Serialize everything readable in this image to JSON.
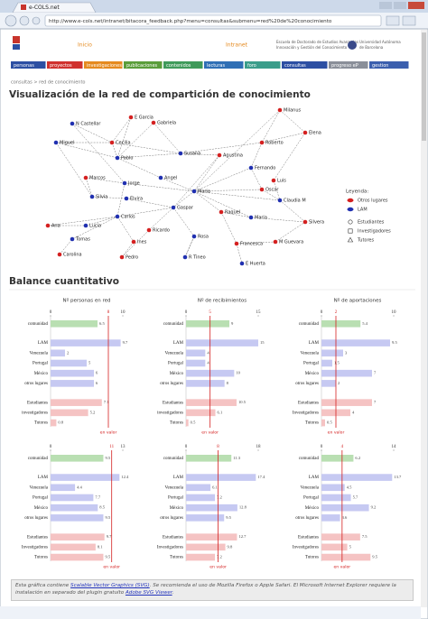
{
  "browser": {
    "tab_title": "e-COLS.net",
    "url": "http://www.e-cols.net/intranet/bitacora_feedback.php?menu=consultas&submenu=red%20de%20conocimiento"
  },
  "header": {
    "left_link": "Inicio",
    "right_link": "Intranet",
    "org_lines": [
      "Escuela de Doctorado de Estudios Avanzados",
      "Innovación y Gestión del Conocimiento"
    ],
    "uni_lines": [
      "Universidad Autónoma",
      "de Barcelona"
    ]
  },
  "nav": [
    {
      "label": "personas",
      "color": "#2c4fa3"
    },
    {
      "label": "proyectos",
      "color": "#d0312d"
    },
    {
      "label": "investigaciones",
      "color": "#e58a1f"
    },
    {
      "label": "publicaciones",
      "color": "#5a9d3a"
    },
    {
      "label": "contenidos",
      "color": "#3f9a5a"
    },
    {
      "label": "lecturas",
      "color": "#2f6fb5"
    },
    {
      "label": "foro",
      "color": "#3a9d8a"
    },
    {
      "label": "consultas",
      "color": "#2c4fa3"
    },
    {
      "label": "progreso eP",
      "color": "#8a8f99"
    },
    {
      "label": "gestion",
      "color": "#3b5fae"
    }
  ],
  "breadcrumb": "consultas > red de conocimiento",
  "title": "Visualización de la red de compartición de conocimiento",
  "network": {
    "nodes": [
      {
        "label": "Milanus",
        "color": "#d42020"
      },
      {
        "label": "Elena",
        "color": "#d42020"
      },
      {
        "label": "E Garcia",
        "color": "#d42020"
      },
      {
        "label": "Gabriela",
        "color": "#d42020"
      },
      {
        "label": "N Castellar",
        "color": "#2030b0"
      },
      {
        "label": "Miguel",
        "color": "#2030b0"
      },
      {
        "label": "Cecilia",
        "color": "#d42020"
      },
      {
        "label": "Pablo",
        "color": "#2030b0"
      },
      {
        "label": "Susana",
        "color": "#2030b0"
      },
      {
        "label": "Roberto",
        "color": "#d42020"
      },
      {
        "label": "Agustina",
        "color": "#d42020"
      },
      {
        "label": "Fernando",
        "color": "#2030b0"
      },
      {
        "label": "Marcos",
        "color": "#d42020"
      },
      {
        "label": "Jorge",
        "color": "#2030b0"
      },
      {
        "label": "Angel",
        "color": "#2030b0"
      },
      {
        "label": "Luis",
        "color": "#d42020"
      },
      {
        "label": "Silvia",
        "color": "#2030b0"
      },
      {
        "label": "Elvira",
        "color": "#2030b0"
      },
      {
        "label": "Mario",
        "color": "#2030b0"
      },
      {
        "label": "Oscar",
        "color": "#d42020"
      },
      {
        "label": "Claudia M",
        "color": "#2030b0"
      },
      {
        "label": "Gaspar",
        "color": "#2030b0"
      },
      {
        "label": "Raquel",
        "color": "#d42020"
      },
      {
        "label": "Maria",
        "color": "#2030b0"
      },
      {
        "label": "Ana",
        "color": "#d42020"
      },
      {
        "label": "Lucia",
        "color": "#2030b0"
      },
      {
        "label": "Carlos",
        "color": "#2030b0"
      },
      {
        "label": "Ricardo",
        "color": "#d42020"
      },
      {
        "label": "Rosa",
        "color": "#2030b0"
      },
      {
        "label": "Silvera",
        "color": "#d42020"
      },
      {
        "label": "Tomas",
        "color": "#2030b0"
      },
      {
        "label": "Ines",
        "color": "#d42020"
      },
      {
        "label": "Francesca",
        "color": "#d42020"
      },
      {
        "label": "M Guevara",
        "color": "#d42020"
      },
      {
        "label": "Carolina",
        "color": "#d42020"
      },
      {
        "label": "Pedro",
        "color": "#d42020"
      },
      {
        "label": "R Tineo",
        "color": "#2030b0"
      },
      {
        "label": "E Huerta",
        "color": "#2030b0"
      }
    ],
    "legend": {
      "title": "Leyenda:",
      "items": [
        {
          "label": "Otros lugares",
          "color": "#d42020"
        },
        {
          "label": "LAM",
          "color": "#2030b0"
        },
        {
          "label": "Estudiantes"
        },
        {
          "label": "Investigadores"
        },
        {
          "label": "Tutores"
        }
      ]
    }
  },
  "balance_title": "Balance cuantitativo",
  "chart_data": [
    {
      "type": "bar",
      "orientation": "horizontal",
      "title": "Nº personas en red",
      "categories": [
        "comunidad",
        "LAM",
        "Venezuela",
        "Portugal",
        "México",
        "otros lugares",
        "Estudiantes",
        "investigadores",
        "Tutores"
      ],
      "values": [
        6.5,
        9.7,
        2,
        5,
        6,
        6,
        7.1,
        5.2,
        0.8
      ],
      "colors": [
        "#b9dfb2",
        "#c6c9f2",
        "#c6c9f2",
        "#c6c9f2",
        "#c6c9f2",
        "#c6c9f2",
        "#f5c3c3",
        "#f5c3c3",
        "#f5c3c3"
      ],
      "xlim": [
        0,
        10
      ],
      "xticks": [
        0,
        10
      ],
      "reference_value": 8,
      "reference_label": "en valor"
    },
    {
      "type": "bar",
      "orientation": "horizontal",
      "title": "Nº de recibimientos",
      "categories": [
        "comunidad",
        "LAM",
        "Venezuela",
        "Portugal",
        "México",
        "otros lugares",
        "Estudiantes",
        "investigadores",
        "Tutores"
      ],
      "values": [
        9,
        15,
        4,
        4,
        10,
        8,
        10.5,
        6.1,
        0.5
      ],
      "colors": [
        "#b9dfb2",
        "#c6c9f2",
        "#c6c9f2",
        "#c6c9f2",
        "#c6c9f2",
        "#c6c9f2",
        "#f5c3c3",
        "#f5c3c3",
        "#f5c3c3"
      ],
      "xlim": [
        0,
        15
      ],
      "xticks": [
        0,
        15
      ],
      "reference_value": 5,
      "reference_label": "en valor"
    },
    {
      "type": "bar",
      "orientation": "horizontal",
      "title": "Nº de aportaciones",
      "categories": [
        "comunidad",
        "LAM",
        "Venezuela",
        "Portugal",
        "México",
        "otros lugares",
        "Estudiantes",
        "Investigadores",
        "Tutores"
      ],
      "values": [
        5.4,
        9.5,
        3,
        1.5,
        7,
        2,
        7,
        4,
        0.5
      ],
      "colors": [
        "#b9dfb2",
        "#c6c9f2",
        "#c6c9f2",
        "#c6c9f2",
        "#c6c9f2",
        "#c6c9f2",
        "#f5c3c3",
        "#f5c3c3",
        "#f5c3c3"
      ],
      "xlim": [
        0,
        10
      ],
      "xticks": [
        0,
        10
      ],
      "reference_value": 2,
      "reference_label": "en valor"
    },
    {
      "type": "bar",
      "orientation": "horizontal",
      "categories": [
        "comunidad",
        "LAM",
        "Venezuela",
        "Portugal",
        "México",
        "otros lugares",
        "Estudiantes",
        "Investigadores",
        "Tutores"
      ],
      "values": [
        9.5,
        12.4,
        4.4,
        7.7,
        8.5,
        9.5,
        9.7,
        8.1,
        9.5
      ],
      "colors": [
        "#b9dfb2",
        "#c6c9f2",
        "#c6c9f2",
        "#c6c9f2",
        "#c6c9f2",
        "#c6c9f2",
        "#f5c3c3",
        "#f5c3c3",
        "#f5c3c3"
      ],
      "xlim": [
        0,
        13
      ],
      "xticks": [
        0,
        13
      ],
      "reference_value": 11,
      "reference_label": "en valor"
    },
    {
      "type": "bar",
      "orientation": "horizontal",
      "categories": [
        "comunidad",
        "LAM",
        "Venezuela",
        "Portugal",
        "México",
        "otros lugares",
        "Estudiantes",
        "Investigadores",
        "Tutores"
      ],
      "values": [
        11.3,
        17.4,
        6.1,
        7.2,
        12.8,
        9.5,
        12.7,
        9.8,
        7.2
      ],
      "colors": [
        "#b9dfb2",
        "#c6c9f2",
        "#c6c9f2",
        "#c6c9f2",
        "#c6c9f2",
        "#c6c9f2",
        "#f5c3c3",
        "#f5c3c3",
        "#f5c3c3"
      ],
      "xlim": [
        0,
        18
      ],
      "xticks": [
        0,
        18
      ],
      "reference_value": 8,
      "reference_label": "en valor"
    },
    {
      "type": "bar",
      "orientation": "horizontal",
      "categories": [
        "comunidad",
        "LAM",
        "Venezuela",
        "Portugal",
        "México",
        "otros lugares",
        "Estudiantes",
        "Investigadores",
        "Tutores"
      ],
      "values": [
        6.2,
        13.7,
        4.5,
        5.7,
        9.2,
        3.6,
        7.5,
        5,
        9.5
      ],
      "colors": [
        "#b9dfb2",
        "#c6c9f2",
        "#c6c9f2",
        "#c6c9f2",
        "#c6c9f2",
        "#c6c9f2",
        "#f5c3c3",
        "#f5c3c3",
        "#f5c3c3"
      ],
      "xlim": [
        0,
        14
      ],
      "xticks": [
        0,
        14
      ],
      "reference_value": 4,
      "reference_label": "en valor"
    }
  ],
  "footer_note": [
    "Esta gráfica contiene ",
    "Scalable Vector Graphics (SVG)",
    ". Se recomienda el uso de Mozilla Firefox o Apple Safari. El Microsoft Internet Explorer requiere la instalación en separado del plugin gratuito ",
    "Adobe SVG Viewer",
    "."
  ]
}
